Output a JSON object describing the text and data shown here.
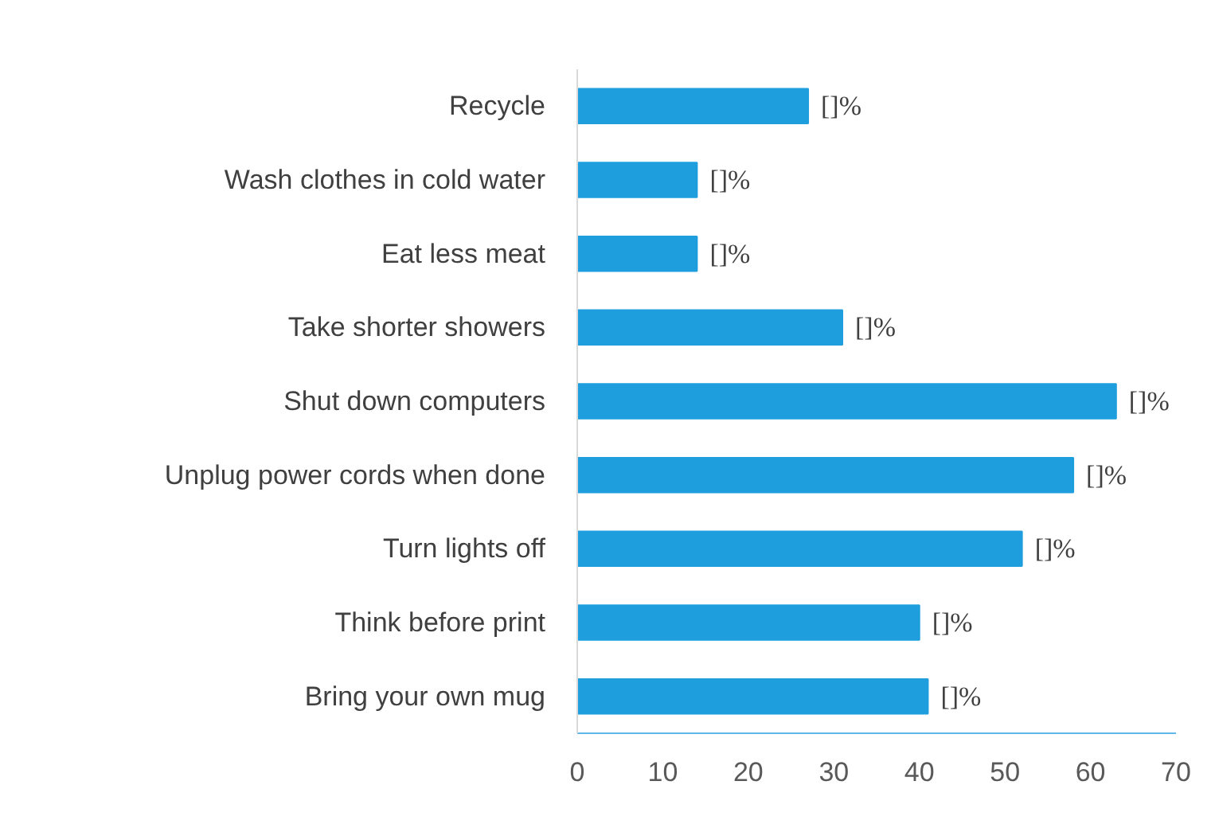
{
  "chart_data": {
    "type": "bar",
    "orientation": "horizontal",
    "categories": [
      "Recycle",
      "Wash clothes in cold water",
      "Eat less meat",
      "Take shorter showers",
      "Shut down computers",
      "Unplug power cords when done",
      "Turn lights off",
      "Think before print",
      "Bring your own mug"
    ],
    "values": [
      27,
      14,
      14,
      31,
      63,
      58,
      52,
      40,
      41
    ],
    "value_labels": [
      "[]%",
      "[]%",
      "[]%",
      "[]%",
      "[]%",
      "[]%",
      "[]%",
      "[]%",
      "[]%"
    ],
    "color": "#1f9ede",
    "xlim": [
      0,
      70
    ],
    "xticks": [
      0,
      10,
      20,
      30,
      40,
      50,
      60,
      70
    ],
    "grid": false
  }
}
